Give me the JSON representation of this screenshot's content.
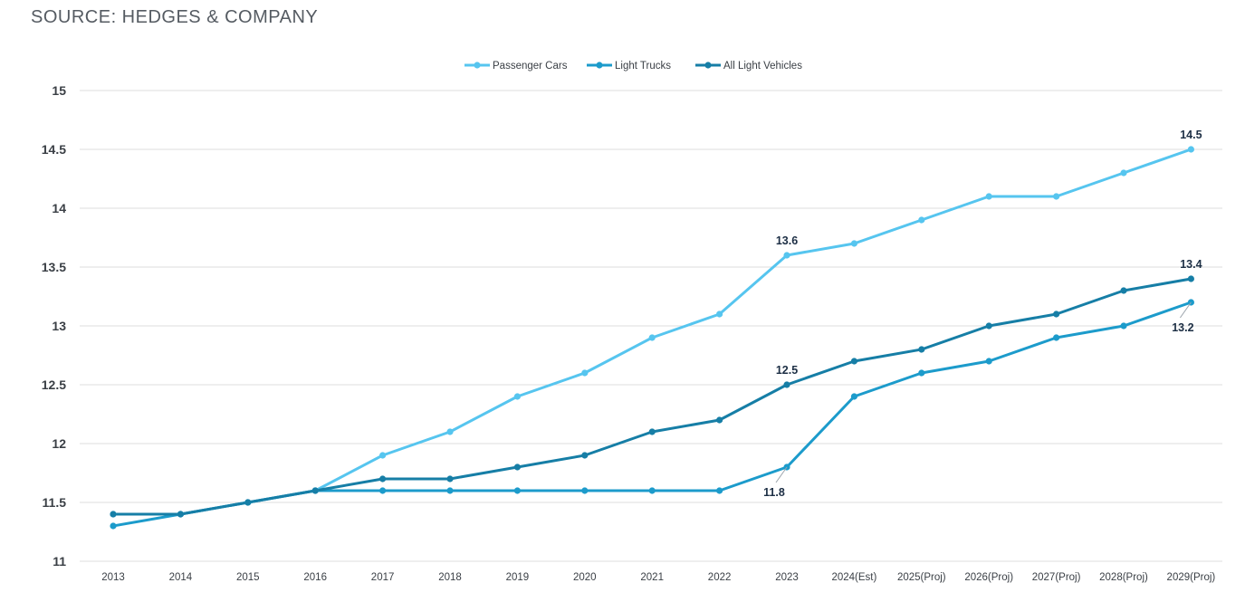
{
  "source_text": "SOURCE: HEDGES & COMPANY",
  "colors": {
    "passenger_cars": "#56c5ef",
    "light_trucks": "#1c9bcb",
    "all_light_vehicles": "#167ea6",
    "grid": "#dcdcdc",
    "label": "#1c2e44"
  },
  "chart_data": {
    "type": "line",
    "categories": [
      "2013",
      "2014",
      "2015",
      "2016",
      "2017",
      "2018",
      "2019",
      "2020",
      "2021",
      "2022",
      "2023",
      "2024(Est)",
      "2025(Proj)",
      "2026(Proj)",
      "2027(Proj)",
      "2028(Proj)",
      "2029(Proj)"
    ],
    "series": [
      {
        "name": "Passenger Cars",
        "values": [
          11.4,
          11.4,
          11.5,
          11.6,
          11.9,
          12.1,
          12.4,
          12.6,
          12.9,
          13.1,
          13.6,
          13.7,
          13.9,
          14.1,
          14.1,
          14.3,
          14.5
        ]
      },
      {
        "name": "Light Trucks",
        "values": [
          11.3,
          11.4,
          11.5,
          11.6,
          11.6,
          11.6,
          11.6,
          11.6,
          11.6,
          11.6,
          11.8,
          12.4,
          12.6,
          12.7,
          12.9,
          13.0,
          13.2
        ]
      },
      {
        "name": "All Light Vehicles",
        "values": [
          11.4,
          11.4,
          11.5,
          11.6,
          11.7,
          11.7,
          11.8,
          11.9,
          12.1,
          12.2,
          12.5,
          12.7,
          12.8,
          13.0,
          13.1,
          13.3,
          13.4
        ]
      }
    ],
    "ylim": [
      11,
      15
    ],
    "yticks": [
      "15",
      "14.5",
      "14",
      "13.5",
      "13",
      "12.5",
      "12",
      "11.5",
      "11"
    ],
    "grid": true,
    "legend_position": "top-center",
    "annotations": [
      {
        "text": "14.5",
        "series": 0,
        "index": 16,
        "placement": "above"
      },
      {
        "text": "13.6",
        "series": 0,
        "index": 10,
        "placement": "above"
      },
      {
        "text": "13.4",
        "series": 2,
        "index": 16,
        "placement": "above"
      },
      {
        "text": "12.5",
        "series": 2,
        "index": 10,
        "placement": "above"
      },
      {
        "text": "13.2",
        "series": 1,
        "index": 16,
        "placement": "below-left"
      },
      {
        "text": "11.8",
        "series": 1,
        "index": 10,
        "placement": "below-left"
      }
    ]
  }
}
